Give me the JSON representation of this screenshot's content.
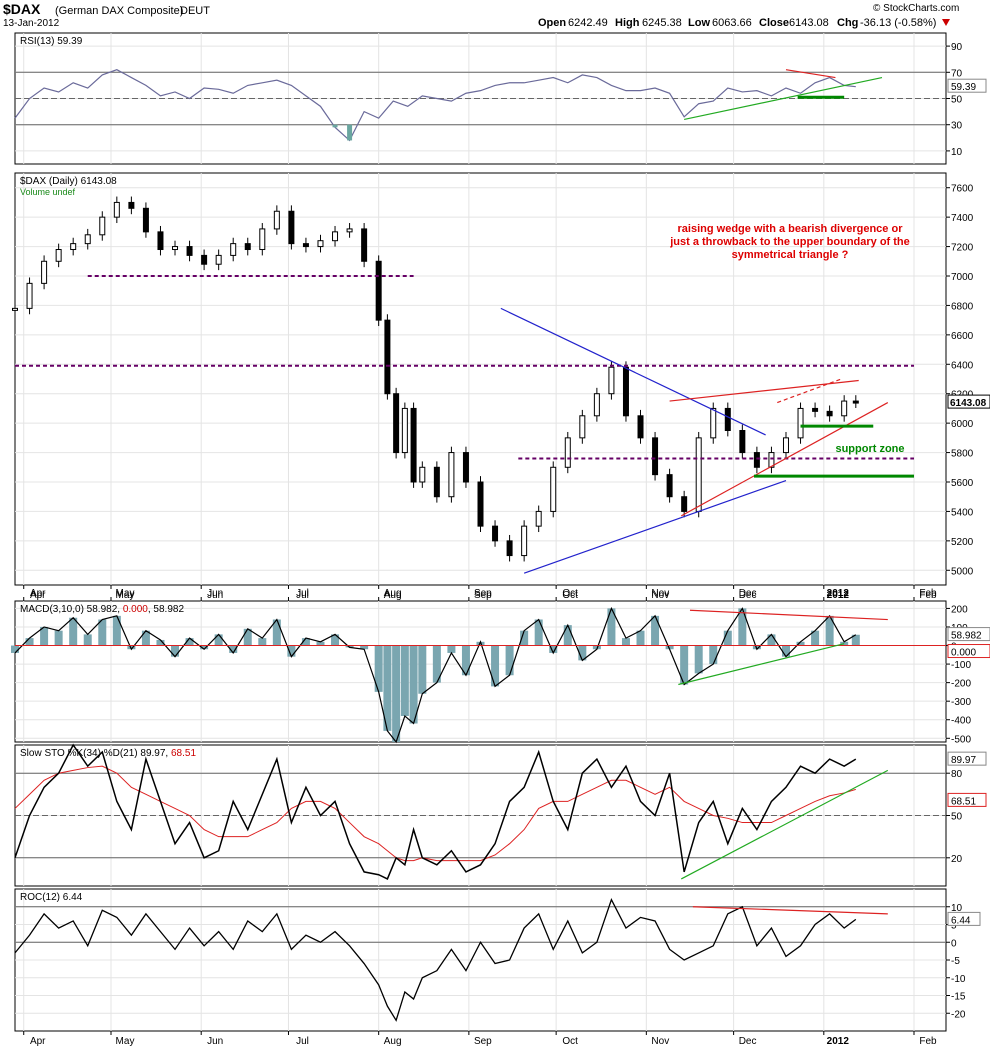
{
  "header": {
    "symbol": "$DAX",
    "name": "(German DAX Composite)",
    "exchange": "DEUT",
    "date": "13-Jan-2012",
    "watermark": "© StockCharts.com",
    "open_label": "Open",
    "open": "6242.49",
    "high_label": "High",
    "high": "6245.38",
    "low_label": "Low",
    "low": "6063.66",
    "close_label": "Close",
    "close": "6143.08",
    "chg_label": "Chg",
    "chg": "-36.13 (-0.58%)",
    "chg_icon": "down-triangle"
  },
  "x_axis": {
    "months": [
      {
        "label": "Apr",
        "x": 3
      },
      {
        "label": "May",
        "x": 33
      },
      {
        "label": "Jun",
        "x": 64
      },
      {
        "label": "Jul",
        "x": 94
      },
      {
        "label": "Aug",
        "x": 125
      },
      {
        "label": "Sep",
        "x": 156
      },
      {
        "label": "Oct",
        "x": 186
      },
      {
        "label": "Nov",
        "x": 217
      },
      {
        "label": "Dec",
        "x": 247
      },
      {
        "label": "2012",
        "x": 278
      },
      {
        "label": "Feb",
        "x": 309
      }
    ]
  },
  "chart_data": [
    {
      "type": "line",
      "title": "RSI(13) 59.39",
      "last_value": "59.39",
      "ylim": [
        0,
        100
      ],
      "yticks": [
        "90",
        "70",
        "50",
        "30",
        "10"
      ],
      "levels": [
        70,
        50,
        30
      ],
      "x": [
        0,
        5,
        10,
        15,
        20,
        25,
        30,
        35,
        40,
        45,
        50,
        55,
        60,
        65,
        70,
        75,
        80,
        85,
        90,
        95,
        100,
        105,
        110,
        115,
        120,
        125,
        130,
        135,
        140,
        145,
        150,
        155,
        160,
        165,
        170,
        175,
        180,
        185,
        190,
        195,
        200,
        205,
        210,
        215,
        220,
        225,
        230,
        235,
        240,
        245,
        250,
        255,
        260,
        265,
        270,
        275,
        280,
        285,
        289
      ],
      "series": [
        {
          "values": [
            35,
            50,
            58,
            55,
            62,
            58,
            68,
            72,
            66,
            60,
            52,
            55,
            50,
            58,
            57,
            54,
            60,
            62,
            64,
            60,
            52,
            44,
            28,
            18,
            40,
            35,
            48,
            44,
            52,
            50,
            48,
            54,
            56,
            60,
            62,
            62,
            64,
            66,
            62,
            68,
            66,
            60,
            56,
            56,
            58,
            54,
            36,
            46,
            48,
            58,
            55,
            56,
            52,
            58,
            54,
            62,
            66,
            60,
            59
          ]
        }
      ],
      "annotations": [
        {
          "type": "trendline",
          "color": "#dd2222",
          "x": [
            265,
            282
          ],
          "y": [
            72,
            66
          ]
        },
        {
          "type": "trendline",
          "color": "#22aa22",
          "x": [
            230,
            298
          ],
          "y": [
            34,
            66
          ]
        },
        {
          "type": "hline",
          "color": "#008800",
          "x": [
            269,
            285
          ],
          "y": [
            51,
            51
          ]
        }
      ]
    },
    {
      "type": "bar",
      "title": "$DAX (Daily) 6143.08",
      "volume_label": "Volume undef",
      "last_value": "6143.08",
      "ylim": [
        4900,
        7700
      ],
      "yticks": [
        "7600",
        "7400",
        "7200",
        "7000",
        "6800",
        "6600",
        "6400",
        "6200",
        "6000",
        "5800",
        "5600",
        "5400",
        "5200",
        "5000"
      ],
      "x": [
        0,
        5,
        10,
        15,
        20,
        25,
        30,
        35,
        40,
        45,
        50,
        55,
        60,
        65,
        70,
        75,
        80,
        85,
        90,
        95,
        100,
        105,
        110,
        115,
        120,
        125,
        128,
        131,
        134,
        137,
        140,
        145,
        150,
        155,
        160,
        165,
        170,
        175,
        180,
        185,
        190,
        195,
        200,
        205,
        210,
        215,
        220,
        225,
        230,
        235,
        240,
        245,
        250,
        255,
        260,
        265,
        270,
        275,
        280,
        285,
        289
      ],
      "series": [
        {
          "name": "$DAX",
          "values": [
            6780,
            6950,
            7100,
            7180,
            7220,
            7280,
            7400,
            7500,
            7460,
            7300,
            7180,
            7200,
            7140,
            7080,
            7140,
            7220,
            7180,
            7320,
            7440,
            7220,
            7200,
            7240,
            7300,
            7320,
            7100,
            6700,
            6200,
            5800,
            6100,
            5600,
            5700,
            5500,
            5800,
            5600,
            5300,
            5200,
            5100,
            5300,
            5400,
            5700,
            5900,
            6050,
            6200,
            6380,
            6050,
            5900,
            5650,
            5500,
            5400,
            5900,
            6100,
            5950,
            5800,
            5700,
            5800,
            5900,
            6100,
            6080,
            6050,
            6150,
            6143
          ]
        }
      ],
      "annotations": [
        {
          "type": "hline",
          "color": "#660066",
          "dashed": true,
          "x": [
            25,
            137
          ],
          "y": [
            7000,
            7000
          ]
        },
        {
          "type": "hline",
          "color": "#660066",
          "dashed": true,
          "x": [
            0,
            309
          ],
          "y": [
            6390,
            6390
          ]
        },
        {
          "type": "hline",
          "color": "#660066",
          "dashed": true,
          "x": [
            173,
            309
          ],
          "y": [
            5760,
            5760
          ]
        },
        {
          "type": "trendline",
          "color": "#2222cc",
          "x": [
            167,
            258
          ],
          "y": [
            6780,
            5920
          ]
        },
        {
          "type": "trendline",
          "color": "#2222cc",
          "x": [
            175,
            265
          ],
          "y": [
            4980,
            5610
          ]
        },
        {
          "type": "trendline",
          "color": "#dd2222",
          "x": [
            229,
            300
          ],
          "y": [
            5370,
            6140
          ]
        },
        {
          "type": "trendline",
          "color": "#dd2222",
          "x": [
            225,
            290
          ],
          "y": [
            6150,
            6290
          ]
        },
        {
          "type": "trendline",
          "color": "#dd2222",
          "dashed": true,
          "x": [
            262,
            284
          ],
          "y": [
            6140,
            6300
          ]
        },
        {
          "type": "hline",
          "color": "#008800",
          "x": [
            254,
            309
          ],
          "y": [
            5640,
            5640
          ]
        },
        {
          "type": "hline",
          "color": "#008800",
          "x": [
            270,
            295
          ],
          "y": [
            5980,
            5980
          ]
        }
      ],
      "notes": {
        "note1": "raising wedge with a bearish divergence or",
        "note2": "just a throwback to the upper boundary of the",
        "note3": "symmetrical triangle ?",
        "support": "support zone"
      }
    },
    {
      "type": "area",
      "title": "MACD(3,10,0) 58.982, 0.000, 58.982",
      "title_parts": [
        "MACD(3,10,0) 58.982, ",
        "0.000",
        ", 58.982"
      ],
      "last_value": "58.982",
      "signal_value": "0.000",
      "ylim": [
        -520,
        240
      ],
      "yticks": [
        "200",
        "100",
        "0",
        "-100",
        "-200",
        "-300",
        "-400",
        "-500"
      ],
      "x": [
        0,
        5,
        10,
        15,
        20,
        25,
        30,
        35,
        40,
        45,
        50,
        55,
        60,
        65,
        70,
        75,
        80,
        85,
        90,
        95,
        100,
        105,
        110,
        115,
        120,
        125,
        128,
        131,
        134,
        137,
        140,
        145,
        150,
        155,
        160,
        165,
        170,
        175,
        180,
        185,
        190,
        195,
        200,
        205,
        210,
        215,
        220,
        225,
        230,
        235,
        240,
        245,
        250,
        255,
        260,
        265,
        270,
        275,
        280,
        285,
        289
      ],
      "series": [
        {
          "name": "MACD",
          "values": [
            -40,
            40,
            100,
            80,
            150,
            60,
            140,
            160,
            -20,
            80,
            30,
            -60,
            40,
            -20,
            60,
            -40,
            90,
            40,
            140,
            -60,
            40,
            20,
            60,
            -10,
            -20,
            -250,
            -460,
            -520,
            -380,
            -420,
            -260,
            -200,
            -40,
            -160,
            20,
            -220,
            -160,
            80,
            140,
            -40,
            110,
            -80,
            -20,
            200,
            40,
            80,
            160,
            -20,
            -210,
            -150,
            -100,
            80,
            200,
            -20,
            60,
            -60,
            20,
            80,
            160,
            20,
            58
          ]
        }
      ],
      "annotations": [
        {
          "type": "trendline",
          "color": "#dd2222",
          "x": [
            232,
            300
          ],
          "y": [
            190,
            140
          ]
        },
        {
          "type": "trendline",
          "color": "#22aa22",
          "x": [
            228,
            285
          ],
          "y": [
            -210,
            10
          ]
        }
      ]
    },
    {
      "type": "line",
      "title": "Slow STO %K(34) %D(21) 89.97, 68.51",
      "title_parts": [
        "Slow STO %K(34) %D(21) 89.97, ",
        "68.51"
      ],
      "k_value": "89.97",
      "d_value": "68.51",
      "ylim": [
        0,
        100
      ],
      "yticks": [
        "80",
        "50",
        "20"
      ],
      "levels": [
        80,
        50,
        20
      ],
      "x": [
        0,
        5,
        10,
        15,
        20,
        25,
        30,
        35,
        40,
        45,
        50,
        55,
        60,
        65,
        70,
        75,
        80,
        85,
        90,
        95,
        100,
        105,
        110,
        115,
        120,
        125,
        128,
        131,
        134,
        137,
        140,
        145,
        150,
        155,
        160,
        165,
        170,
        175,
        180,
        185,
        190,
        195,
        200,
        205,
        210,
        215,
        220,
        225,
        230,
        235,
        240,
        245,
        250,
        255,
        260,
        265,
        270,
        275,
        280,
        285,
        289
      ],
      "series": [
        {
          "name": "%K",
          "values": [
            20,
            50,
            70,
            80,
            100,
            85,
            95,
            60,
            40,
            90,
            60,
            30,
            45,
            20,
            25,
            60,
            40,
            65,
            90,
            45,
            70,
            50,
            60,
            30,
            10,
            8,
            5,
            20,
            15,
            40,
            20,
            15,
            25,
            10,
            15,
            30,
            60,
            70,
            95,
            60,
            40,
            80,
            90,
            70,
            85,
            60,
            50,
            80,
            10,
            45,
            60,
            30,
            55,
            40,
            60,
            70,
            85,
            80,
            90,
            85,
            89.97
          ]
        },
        {
          "name": "%D",
          "values": [
            55,
            65,
            75,
            80,
            82,
            84,
            85,
            80,
            70,
            65,
            60,
            55,
            50,
            40,
            35,
            35,
            35,
            40,
            45,
            55,
            60,
            60,
            55,
            45,
            35,
            30,
            25,
            20,
            18,
            18,
            20,
            18,
            18,
            18,
            18,
            22,
            30,
            40,
            55,
            60,
            60,
            65,
            70,
            75,
            75,
            70,
            65,
            70,
            60,
            55,
            50,
            48,
            45,
            45,
            45,
            50,
            55,
            60,
            64,
            66,
            68.51
          ]
        }
      ],
      "annotations": [
        {
          "type": "trendline",
          "color": "#22aa22",
          "x": [
            229,
            300
          ],
          "y": [
            5,
            82
          ]
        }
      ]
    },
    {
      "type": "line",
      "title": "ROC(12) 6.44",
      "last_value": "6.44",
      "ylim": [
        -25,
        15
      ],
      "yticks": [
        "10",
        "5",
        "0",
        "-5",
        "-10",
        "-15",
        "-20"
      ],
      "levels": [
        10,
        0
      ],
      "x": [
        0,
        5,
        10,
        15,
        20,
        25,
        30,
        35,
        40,
        45,
        50,
        55,
        60,
        65,
        70,
        75,
        80,
        85,
        90,
        95,
        100,
        105,
        110,
        115,
        120,
        125,
        128,
        131,
        134,
        137,
        140,
        145,
        150,
        155,
        160,
        165,
        170,
        175,
        180,
        185,
        190,
        195,
        200,
        205,
        210,
        215,
        220,
        225,
        230,
        235,
        240,
        245,
        250,
        255,
        260,
        265,
        270,
        275,
        280,
        285,
        289
      ],
      "series": [
        {
          "name": "ROC",
          "values": [
            -3,
            2,
            8,
            4,
            6,
            -1,
            9,
            7,
            2,
            8,
            3,
            -2,
            4,
            -1,
            3,
            -2,
            6,
            3,
            8,
            -2,
            2,
            0,
            3,
            -1,
            -6,
            -12,
            -18,
            -22,
            -14,
            -16,
            -10,
            -8,
            -2,
            -8,
            0,
            -6,
            -5,
            4,
            8,
            -2,
            6,
            -3,
            0,
            12,
            4,
            7,
            6,
            -2,
            -5,
            -3,
            -1,
            8,
            10,
            -1,
            4,
            -4,
            -1,
            5,
            8,
            4,
            6.44
          ]
        }
      ],
      "annotations": [
        {
          "type": "trendline",
          "color": "#dd2222",
          "x": [
            233,
            300
          ],
          "y": [
            10,
            8
          ]
        }
      ]
    }
  ]
}
